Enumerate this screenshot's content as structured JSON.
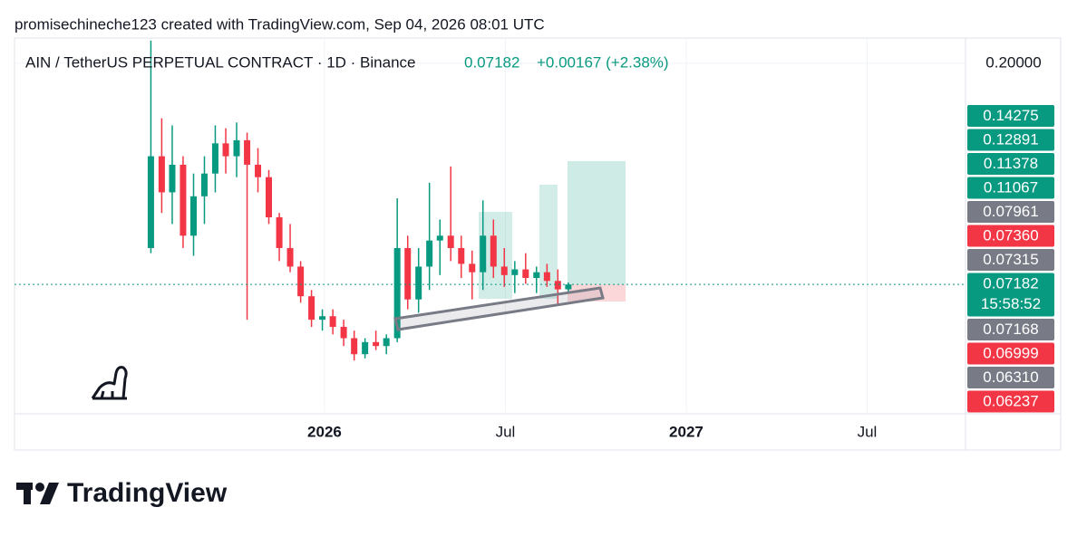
{
  "header": {
    "attribution": "promisechineche123 created with TradingView.com, Sep 04, 2026 08:01 UTC"
  },
  "chart_data": {
    "type": "candlestick",
    "title": "AIN / TetherUS PERPETUAL CONTRACT · 1D · Binance",
    "last_price": "0.07182",
    "change": "+0.00167 (+2.38%)",
    "up_color": "#089981",
    "down_color": "#f23645",
    "log_scale": true,
    "grid": true,
    "x": [
      2025.52,
      2025.55,
      2025.579,
      2025.609,
      2025.638,
      2025.668,
      2025.698,
      2025.727,
      2025.757,
      2025.786,
      2025.816,
      2025.846,
      2025.875,
      2025.905,
      2025.934,
      2025.964,
      2025.994,
      2026.023,
      2026.053,
      2026.082,
      2026.112,
      2026.142,
      2026.171,
      2026.201,
      2026.23,
      2026.26,
      2026.29,
      2026.319,
      2026.349,
      2026.378,
      2026.408,
      2026.438,
      2026.467,
      2026.497,
      2026.526,
      2026.556,
      2026.586,
      2026.615,
      2026.645,
      2026.674
    ],
    "open": [
      0.085,
      0.13,
      0.11,
      0.125,
      0.09,
      0.108,
      0.12,
      0.138,
      0.13,
      0.14,
      0.125,
      0.118,
      0.098,
      0.085,
      0.078,
      0.068,
      0.061,
      0.062,
      0.059,
      0.056,
      0.052,
      0.055,
      0.054,
      0.056,
      0.085,
      0.067,
      0.078,
      0.088,
      0.09,
      0.085,
      0.079,
      0.076,
      0.09,
      0.078,
      0.075,
      0.077,
      0.074,
      0.076,
      0.073,
      0.0702
    ],
    "high": [
      0.222,
      0.155,
      0.15,
      0.13,
      0.12,
      0.13,
      0.15,
      0.148,
      0.152,
      0.145,
      0.135,
      0.122,
      0.1,
      0.095,
      0.08,
      0.07,
      0.064,
      0.064,
      0.061,
      0.058,
      0.056,
      0.058,
      0.057,
      0.107,
      0.09,
      0.085,
      0.115,
      0.097,
      0.124,
      0.09,
      0.084,
      0.106,
      0.097,
      0.085,
      0.08,
      0.083,
      0.078,
      0.079,
      0.077,
      0.0725
    ],
    "low": [
      0.083,
      0.1,
      0.095,
      0.085,
      0.082,
      0.095,
      0.11,
      0.12,
      0.118,
      0.061,
      0.11,
      0.095,
      0.08,
      0.076,
      0.066,
      0.059,
      0.058,
      0.057,
      0.054,
      0.0505,
      0.051,
      0.053,
      0.052,
      0.055,
      0.064,
      0.063,
      0.07,
      0.075,
      0.08,
      0.074,
      0.067,
      0.07,
      0.074,
      0.071,
      0.069,
      0.072,
      0.069,
      0.071,
      0.065,
      0.069
    ],
    "close": [
      0.13,
      0.11,
      0.125,
      0.09,
      0.108,
      0.12,
      0.138,
      0.13,
      0.14,
      0.125,
      0.118,
      0.098,
      0.085,
      0.078,
      0.068,
      0.061,
      0.062,
      0.059,
      0.056,
      0.052,
      0.055,
      0.054,
      0.056,
      0.085,
      0.067,
      0.078,
      0.088,
      0.09,
      0.085,
      0.079,
      0.076,
      0.09,
      0.078,
      0.075,
      0.077,
      0.074,
      0.076,
      0.073,
      0.0702,
      0.07182
    ],
    "xlim": [
      2025.143,
      2027.772
    ],
    "xticks": [
      2026,
      {
        "value": 2026.5,
        "label": "Jul"
      },
      2027,
      {
        "value": 2027.5,
        "label": "Jul"
      }
    ],
    "ylim": [
      0.0398,
      0.2247
    ],
    "yticks": [
      {
        "value": 0.2,
        "label": "0.20000"
      }
    ],
    "price_tags": [
      {
        "label": "0.14275",
        "color": "#089981"
      },
      {
        "label": "0.12891",
        "color": "#089981"
      },
      {
        "label": "0.11378",
        "color": "#089981"
      },
      {
        "label": "0.11067",
        "color": "#089981"
      },
      {
        "label": "0.07961",
        "color": "#787b86"
      },
      {
        "label": "0.07360",
        "color": "#f23645"
      },
      {
        "label": "0.07315",
        "color": "#787b86"
      },
      {
        "label": "0.07182",
        "countdown": "15:58:52",
        "color": "#089981"
      },
      {
        "label": "0.07168",
        "color": "#787b86"
      },
      {
        "label": "0.06999",
        "color": "#f23645"
      },
      {
        "label": "0.06310",
        "color": "#787b86"
      },
      {
        "label": "0.06237",
        "color": "#f23645"
      }
    ]
  },
  "footer": {
    "logo_text": "TradingView"
  }
}
